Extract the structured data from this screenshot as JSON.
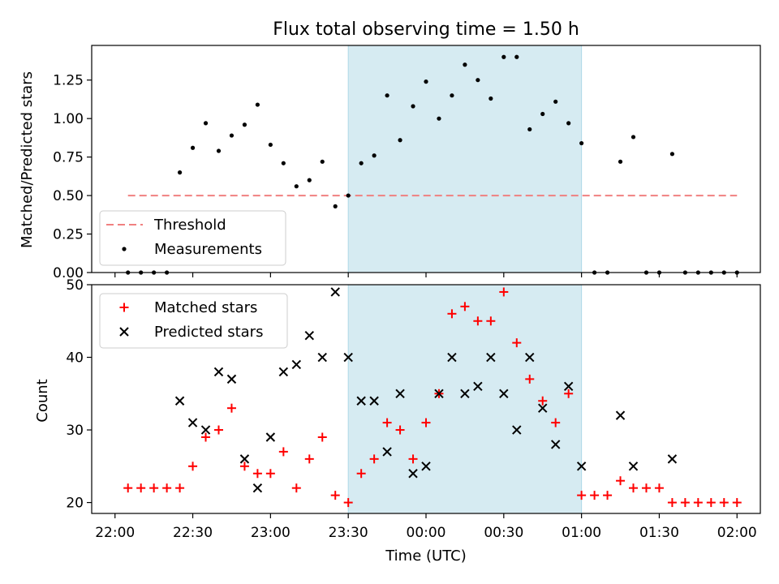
{
  "chart_data": [
    {
      "type": "scatter",
      "title": "Flux total observing time = 1.50 h",
      "ylabel": "Matched/Predicted stars",
      "ylim": [
        0,
        1.475
      ],
      "yticks": [
        0.0,
        0.25,
        0.5,
        0.75,
        1.0,
        1.25
      ],
      "ytick_labels": [
        "0.00",
        "0.25",
        "0.50",
        "0.75",
        "1.00",
        "1.25"
      ],
      "legend": "lower-left",
      "shaded_region": {
        "start": "23:30",
        "end": "01:00",
        "color": "#add8e6"
      },
      "threshold": {
        "name": "Threshold",
        "value": 0.5,
        "start": "22:05",
        "end": "02:00",
        "color": "#f08080"
      },
      "series": [
        {
          "name": "Measurements",
          "color": "#000000",
          "x": [
            "22:05",
            "22:10",
            "22:15",
            "22:20",
            "22:25",
            "22:30",
            "22:35",
            "22:40",
            "22:45",
            "22:50",
            "22:55",
            "23:00",
            "23:05",
            "23:10",
            "23:15",
            "23:20",
            "23:25",
            "23:30",
            "23:35",
            "23:40",
            "23:45",
            "23:50",
            "23:55",
            "00:00",
            "00:05",
            "00:10",
            "00:15",
            "00:20",
            "00:25",
            "00:30",
            "00:35",
            "00:40",
            "00:45",
            "00:50",
            "00:55",
            "01:00",
            "01:05",
            "01:10",
            "01:15",
            "01:20",
            "01:25",
            "01:30",
            "01:35",
            "01:40",
            "01:45",
            "01:50",
            "01:55",
            "02:00"
          ],
          "y": [
            0,
            0,
            0,
            0,
            0.65,
            0.81,
            0.97,
            0.79,
            0.89,
            0.96,
            1.09,
            0.83,
            0.71,
            0.56,
            0.6,
            0.72,
            0.43,
            0.5,
            0.71,
            0.76,
            1.15,
            0.86,
            1.08,
            1.24,
            1.0,
            1.15,
            1.35,
            1.25,
            1.13,
            1.4,
            1.4,
            0.93,
            1.03,
            1.11,
            0.97,
            0.84,
            0,
            0,
            0.72,
            0.88,
            0,
            0,
            0.77,
            0,
            0,
            0,
            0,
            0
          ]
        }
      ]
    },
    {
      "type": "scatter",
      "xlabel": "Time (UTC)",
      "ylabel": "Count",
      "ylim": [
        18.5,
        50
      ],
      "yticks": [
        20,
        30,
        40,
        50
      ],
      "xticks": [
        "22:00",
        "22:30",
        "23:00",
        "23:30",
        "00:00",
        "00:30",
        "01:00",
        "01:30",
        "02:00"
      ],
      "legend": "upper-left",
      "shaded_region": {
        "start": "23:30",
        "end": "01:00",
        "color": "#add8e6"
      },
      "series": [
        {
          "name": "Matched stars",
          "color": "#ff0000",
          "marker": "+",
          "x": [
            "22:05",
            "22:10",
            "22:15",
            "22:20",
            "22:25",
            "22:30",
            "22:35",
            "22:40",
            "22:45",
            "22:50",
            "22:55",
            "23:00",
            "23:05",
            "23:10",
            "23:15",
            "23:20",
            "23:25",
            "23:30",
            "23:35",
            "23:40",
            "23:45",
            "23:50",
            "23:55",
            "00:00",
            "00:05",
            "00:10",
            "00:15",
            "00:20",
            "00:25",
            "00:30",
            "00:35",
            "00:40",
            "00:45",
            "00:50",
            "00:55",
            "01:00",
            "01:05",
            "01:10",
            "01:15",
            "01:20",
            "01:25",
            "01:30",
            "01:35",
            "01:40",
            "01:45",
            "01:50",
            "01:55",
            "02:00"
          ],
          "y": [
            22,
            22,
            22,
            22,
            22,
            25,
            29,
            30,
            33,
            25,
            24,
            24,
            27,
            22,
            26,
            29,
            21,
            20,
            24,
            26,
            31,
            30,
            26,
            31,
            35,
            46,
            47,
            45,
            45,
            49,
            42,
            37,
            34,
            31,
            35,
            21,
            21,
            21,
            23,
            22,
            22,
            22,
            20,
            20,
            20,
            20,
            20,
            20
          ]
        },
        {
          "name": "Predicted stars",
          "color": "#000000",
          "marker": "x",
          "x": [
            "22:25",
            "22:30",
            "22:35",
            "22:40",
            "22:45",
            "22:50",
            "22:55",
            "23:00",
            "23:05",
            "23:10",
            "23:15",
            "23:20",
            "23:25",
            "23:30",
            "23:35",
            "23:40",
            "23:45",
            "23:50",
            "23:55",
            "00:00",
            "00:05",
            "00:10",
            "00:15",
            "00:20",
            "00:25",
            "00:30",
            "00:35",
            "00:40",
            "00:45",
            "00:50",
            "00:55",
            "01:00",
            "01:15",
            "01:20",
            "01:35"
          ],
          "y": [
            34,
            31,
            30,
            38,
            37,
            26,
            22,
            29,
            38,
            39,
            43,
            40,
            49,
            40,
            34,
            34,
            27,
            35,
            24,
            25,
            35,
            40,
            35,
            36,
            40,
            35,
            30,
            40,
            33,
            28,
            36,
            25,
            32,
            25,
            26
          ]
        }
      ]
    }
  ]
}
